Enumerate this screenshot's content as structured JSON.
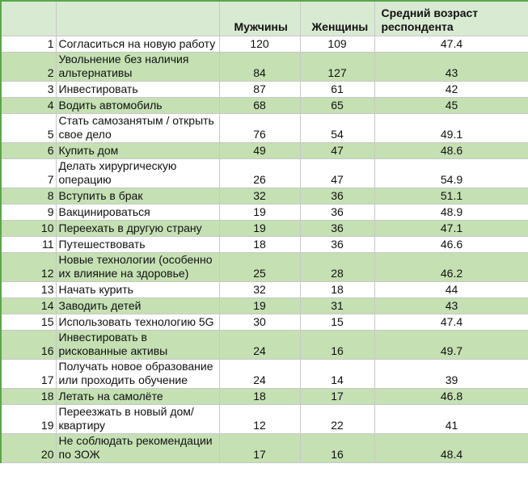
{
  "table": {
    "header": [
      "Мужчины",
      "Женщины",
      "Средний возраст респондента"
    ],
    "rows": [
      [
        1,
        "Согласиться на новую работу",
        120,
        109,
        47.4
      ],
      [
        2,
        "Увольнение без наличия альтернативы",
        84,
        127,
        43
      ],
      [
        3,
        "Инвестировать",
        87,
        61,
        42
      ],
      [
        4,
        "Водить автомобиль",
        68,
        65,
        45
      ],
      [
        5,
        "Стать самозанятым / открыть свое дело",
        76,
        54,
        49.1
      ],
      [
        6,
        "Купить дом",
        49,
        47,
        48.6
      ],
      [
        7,
        "Делать хирургическую операцию",
        26,
        47,
        54.9
      ],
      [
        8,
        "Вступить в брак",
        32,
        36,
        51.1
      ],
      [
        9,
        "Вакцинироваться",
        19,
        36,
        48.9
      ],
      [
        10,
        "Переехать в другую страну",
        19,
        36,
        47.1
      ],
      [
        11,
        "Путешествовать",
        18,
        36,
        46.6
      ],
      [
        12,
        "Новые технологии (особенно их влияние на здоровье)",
        25,
        28,
        46.2
      ],
      [
        13,
        "Начать курить",
        32,
        18,
        44
      ],
      [
        14,
        "Заводить детей",
        19,
        31,
        43
      ],
      [
        15,
        "Использовать технологию 5G",
        30,
        15,
        47.4
      ],
      [
        16,
        "Инвестировать в рискованные активы",
        24,
        16,
        49.7
      ],
      [
        17,
        "Получать новое образование или проходить обучение",
        24,
        14,
        39
      ],
      [
        18,
        "Летать на самолёте",
        18,
        17,
        46.8
      ],
      [
        19,
        "Переезжать в новый дом/квартиру",
        12,
        22,
        41
      ],
      [
        20,
        "Не соблюдать рекомендации по ЗОЖ",
        17,
        16,
        48.4
      ]
    ]
  }
}
